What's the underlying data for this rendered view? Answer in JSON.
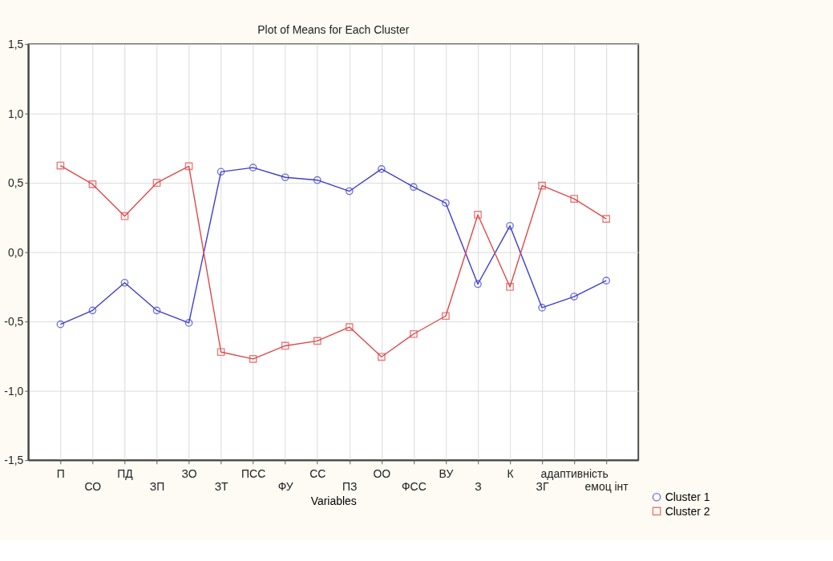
{
  "chart_data": {
    "type": "line",
    "title": "Plot of Means for Each Cluster",
    "xlabel": "Variables",
    "categories": [
      "П",
      "СО",
      "ПД",
      "ЗП",
      "ЗО",
      "ЗТ",
      "ПСС",
      "ФУ",
      "СС",
      "ПЗ",
      "ОО",
      "ФСС",
      "ВУ",
      "З",
      "К",
      "ЗГ",
      "адаптивність",
      "емоц інт"
    ],
    "series": [
      {
        "name": "Cluster  1",
        "color": "#3c3cd0",
        "marker": "circle",
        "values": [
          -0.52,
          -0.42,
          -0.22,
          -0.42,
          -0.51,
          0.58,
          0.61,
          0.54,
          0.52,
          0.44,
          0.6,
          0.47,
          0.355,
          -0.23,
          0.19,
          -0.4,
          -0.32,
          -0.205
        ]
      },
      {
        "name": "Cluster  2",
        "color": "#e04848",
        "marker": "square",
        "values": [
          0.625,
          0.49,
          0.26,
          0.5,
          0.62,
          -0.72,
          -0.77,
          -0.675,
          -0.64,
          -0.54,
          -0.755,
          -0.59,
          -0.46,
          0.27,
          -0.25,
          0.48,
          0.385,
          0.24
        ]
      }
    ],
    "ylim": [
      -1.5,
      1.5
    ],
    "yticks": [
      {
        "value": -1.5,
        "label": "-1,5"
      },
      {
        "value": -1.0,
        "label": "-1,0"
      },
      {
        "value": -0.5,
        "label": "-0,5"
      },
      {
        "value": 0.0,
        "label": "0,0"
      },
      {
        "value": 0.5,
        "label": "0,5"
      },
      {
        "value": 1.0,
        "label": "1,0"
      },
      {
        "value": 1.5,
        "label": "1,5"
      }
    ],
    "grid": true,
    "legend": "bottom right"
  }
}
